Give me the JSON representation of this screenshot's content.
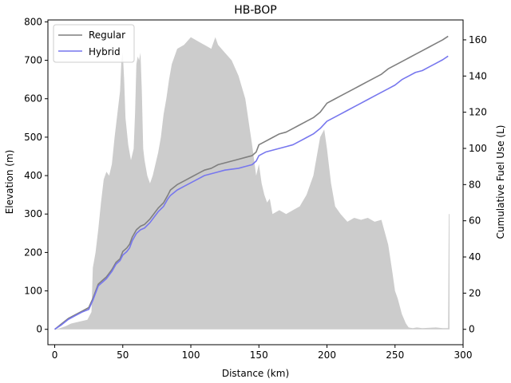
{
  "chart_data": {
    "type": "line",
    "title": "HB-BOP",
    "xlabel": "Distance (km)",
    "ylabel": "Elevation (m)",
    "y2label": "Cumulative Fuel Use (L)",
    "xlim": [
      -5,
      300
    ],
    "ylim": [
      -40,
      805
    ],
    "y2lim": [
      -8.5,
      171
    ],
    "xticks": [
      0,
      50,
      100,
      150,
      200,
      250,
      300
    ],
    "yticks": [
      0,
      100,
      200,
      300,
      400,
      500,
      600,
      700,
      800
    ],
    "y2ticks": [
      0,
      20,
      40,
      60,
      80,
      100,
      120,
      140,
      160
    ],
    "grid": false,
    "legend_position": "top-left",
    "elevation": {
      "color": "#cccccc",
      "x": [
        0,
        3,
        8,
        12,
        18,
        24,
        27,
        28,
        30,
        32,
        34,
        36,
        38,
        40,
        42,
        44,
        46,
        48,
        49,
        50,
        51,
        52,
        54,
        56,
        58,
        59,
        60,
        61,
        62,
        63,
        64,
        65,
        66,
        68,
        70,
        72,
        74,
        76,
        78,
        80,
        82,
        84,
        86,
        88,
        90,
        95,
        100,
        105,
        110,
        115,
        118,
        120,
        125,
        130,
        135,
        140,
        145,
        148,
        150,
        152,
        154,
        156,
        158,
        160,
        165,
        170,
        175,
        180,
        185,
        190,
        195,
        198,
        200,
        203,
        206,
        210,
        215,
        220,
        225,
        230,
        235,
        240,
        245,
        248,
        250,
        252,
        255,
        258,
        260,
        263,
        266,
        270,
        280,
        285,
        289,
        289.5,
        290
      ],
      "y": [
        0,
        2,
        8,
        15,
        20,
        25,
        45,
        160,
        200,
        260,
        330,
        390,
        410,
        400,
        430,
        500,
        560,
        620,
        700,
        720,
        650,
        550,
        480,
        440,
        470,
        560,
        690,
        710,
        700,
        720,
        620,
        470,
        440,
        400,
        380,
        400,
        430,
        460,
        500,
        560,
        600,
        650,
        690,
        710,
        730,
        740,
        760,
        750,
        740,
        730,
        760,
        740,
        720,
        700,
        660,
        600,
        480,
        400,
        430,
        380,
        350,
        330,
        340,
        300,
        310,
        300,
        310,
        320,
        350,
        400,
        500,
        520,
        470,
        380,
        320,
        300,
        280,
        290,
        285,
        290,
        280,
        285,
        220,
        150,
        100,
        80,
        40,
        15,
        5,
        3,
        5,
        3,
        5,
        3,
        3,
        300,
        300
      ]
    },
    "series": [
      {
        "name": "Regular",
        "color": "#7f7f7f",
        "x": [
          0,
          5,
          10,
          15,
          20,
          25,
          28,
          30,
          32,
          35,
          38,
          40,
          42,
          45,
          48,
          50,
          53,
          55,
          57,
          60,
          63,
          66,
          70,
          73,
          76,
          80,
          83,
          85,
          90,
          95,
          100,
          105,
          110,
          115,
          120,
          125,
          130,
          135,
          140,
          145,
          148,
          150,
          155,
          160,
          165,
          170,
          175,
          180,
          185,
          190,
          195,
          200,
          205,
          210,
          215,
          220,
          225,
          230,
          235,
          240,
          245,
          250,
          255,
          260,
          265,
          270,
          275,
          280,
          285,
          289
        ],
        "y": [
          0,
          3,
          6,
          8,
          10,
          12,
          17,
          21,
          25,
          27,
          29,
          31,
          33,
          37,
          39,
          43,
          45,
          47,
          51,
          55,
          57,
          58,
          61,
          64,
          67,
          70,
          74,
          77,
          80,
          82,
          84,
          86,
          88,
          89,
          91,
          92,
          93,
          94,
          95,
          96,
          98,
          102,
          104,
          106,
          108,
          109,
          111,
          113,
          115,
          117,
          120,
          125,
          127,
          129,
          131,
          133,
          135,
          137,
          139,
          141,
          144,
          146,
          148,
          150,
          152,
          154,
          156,
          158,
          160,
          162
        ]
      },
      {
        "name": "Hybrid",
        "color": "#7777ee",
        "x": [
          0,
          5,
          10,
          15,
          20,
          25,
          28,
          30,
          32,
          35,
          38,
          40,
          42,
          45,
          48,
          50,
          53,
          55,
          57,
          60,
          63,
          66,
          70,
          73,
          76,
          80,
          83,
          85,
          90,
          95,
          100,
          105,
          110,
          115,
          120,
          125,
          130,
          135,
          140,
          145,
          148,
          150,
          155,
          160,
          165,
          170,
          175,
          180,
          185,
          190,
          195,
          200,
          205,
          210,
          215,
          220,
          225,
          230,
          235,
          240,
          245,
          250,
          255,
          260,
          265,
          270,
          275,
          280,
          285,
          289
        ],
        "y": [
          0,
          2.5,
          5.5,
          7.5,
          9.5,
          11,
          16,
          20,
          24,
          26,
          28,
          30,
          32,
          36,
          38,
          41,
          43,
          45,
          49,
          53,
          55,
          56,
          59,
          62,
          65,
          68,
          72,
          74,
          77,
          79,
          81,
          83,
          85,
          86,
          87,
          88,
          88.5,
          89,
          90,
          91,
          93,
          96,
          98,
          99,
          100,
          101,
          102,
          104,
          106,
          108,
          111,
          115,
          117,
          119,
          121,
          123,
          125,
          127,
          129,
          131,
          133,
          135,
          138,
          140,
          142,
          143,
          145,
          147,
          149,
          151
        ]
      }
    ]
  }
}
